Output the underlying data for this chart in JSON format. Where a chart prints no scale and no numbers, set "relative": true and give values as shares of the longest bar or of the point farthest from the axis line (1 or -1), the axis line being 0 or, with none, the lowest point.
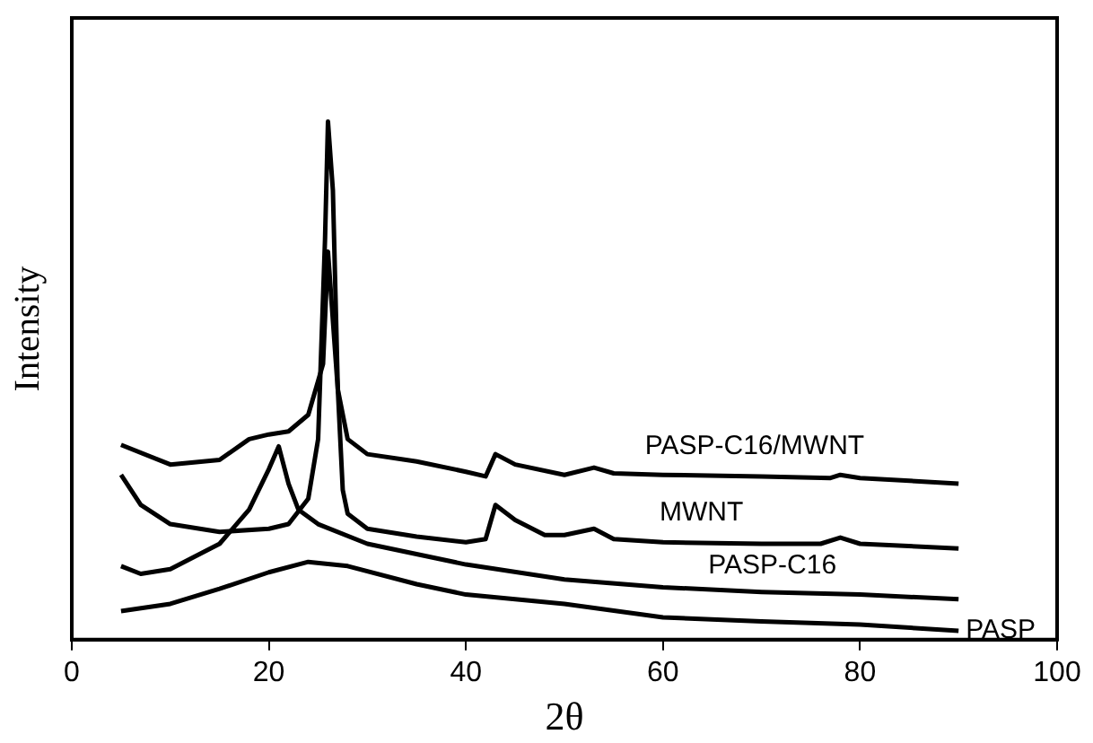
{
  "chart_data": {
    "type": "line",
    "xlabel": "2θ",
    "ylabel": "Intensity",
    "relative": true,
    "xlim": [
      0,
      100
    ],
    "xticks": [
      0,
      20,
      40,
      60,
      80,
      100
    ],
    "series": [
      {
        "name": "PASP-C16/MWNT",
        "color": "#000000",
        "x": [
          5,
          10,
          15,
          18,
          20,
          22,
          24,
          25.5,
          26,
          27,
          28,
          30,
          35,
          40,
          42,
          43,
          45,
          50,
          53,
          55,
          60,
          70,
          77,
          78,
          80,
          90
        ],
        "values": [
          0.376,
          0.338,
          0.347,
          0.387,
          0.396,
          0.402,
          0.434,
          0.532,
          0.749,
          0.483,
          0.387,
          0.358,
          0.344,
          0.324,
          0.315,
          0.358,
          0.338,
          0.318,
          0.332,
          0.321,
          0.318,
          0.315,
          0.312,
          0.318,
          0.312,
          0.301
        ]
      },
      {
        "name": "MWNT",
        "color": "#000000",
        "x": [
          5,
          7,
          10,
          15,
          20,
          22,
          24,
          25,
          25.7,
          26,
          26.5,
          27,
          27.5,
          28,
          30,
          35,
          40,
          42,
          43,
          45,
          48,
          50,
          53,
          55,
          60,
          70,
          76,
          78,
          80,
          90
        ],
        "values": [
          0.318,
          0.26,
          0.223,
          0.208,
          0.214,
          0.223,
          0.272,
          0.387,
          0.772,
          1,
          0.867,
          0.483,
          0.289,
          0.243,
          0.214,
          0.199,
          0.188,
          0.194,
          0.26,
          0.231,
          0.202,
          0.202,
          0.214,
          0.194,
          0.188,
          0.185,
          0.185,
          0.197,
          0.185,
          0.176
        ]
      },
      {
        "name": "PASP-C16",
        "color": "#000000",
        "x": [
          5,
          7,
          10,
          15,
          18,
          20,
          21,
          22,
          23,
          25,
          30,
          40,
          50,
          60,
          70,
          80,
          90
        ],
        "values": [
          0.142,
          0.127,
          0.136,
          0.185,
          0.251,
          0.329,
          0.373,
          0.301,
          0.251,
          0.223,
          0.185,
          0.145,
          0.116,
          0.101,
          0.092,
          0.087,
          0.078
        ]
      },
      {
        "name": "PASP",
        "color": "#000000",
        "x": [
          5,
          10,
          15,
          20,
          24,
          28,
          35,
          40,
          50,
          60,
          70,
          80,
          90
        ],
        "values": [
          0.055,
          0.069,
          0.098,
          0.13,
          0.15,
          0.142,
          0.107,
          0.087,
          0.069,
          0.043,
          0.035,
          0.029,
          0.017
        ]
      }
    ]
  }
}
